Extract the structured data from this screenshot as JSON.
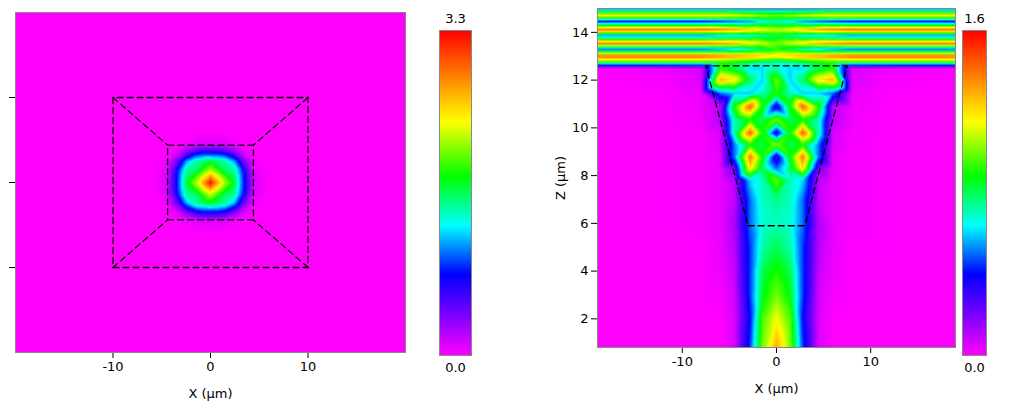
{
  "chart_data": [
    {
      "type": "heatmap",
      "xlabel": "X (µm)",
      "xlim": [
        -20,
        20
      ],
      "ylim": [
        -20,
        20
      ],
      "xticks": [
        -10,
        0,
        10
      ],
      "yticks": [
        -10,
        0,
        10
      ],
      "tick_labels": "x",
      "zlim": [
        0,
        3.3
      ],
      "zticks": [
        {
          "value": 0,
          "label": "0.0"
        },
        3.3
      ],
      "x": [
        -20,
        -6,
        -4.5,
        -3.5,
        -2.5,
        -1.5,
        -0.75,
        0,
        0.75,
        1.5,
        2.5,
        3.5,
        4.5,
        6,
        20
      ],
      "y": [
        -20,
        -6,
        -4.5,
        -3.5,
        -2.5,
        -1.5,
        -0.75,
        0,
        0.75,
        1.5,
        2.5,
        3.5,
        4.5,
        6,
        20
      ],
      "values": [
        [
          0,
          0,
          0,
          0,
          0,
          0,
          0,
          0,
          0,
          0,
          0,
          0,
          0,
          0,
          0
        ],
        [
          0,
          0,
          0,
          0,
          0,
          0,
          0,
          0,
          0,
          0,
          0,
          0,
          0,
          0,
          0
        ],
        [
          0,
          0,
          0,
          0,
          0.03,
          0.08,
          0.1,
          0.1,
          0.1,
          0.08,
          0.03,
          0,
          0,
          0,
          0
        ],
        [
          0,
          0,
          0,
          0.1,
          0.4,
          0.7,
          0.8,
          0.8,
          0.8,
          0.7,
          0.4,
          0.1,
          0,
          0,
          0
        ],
        [
          0,
          0,
          0.03,
          0.4,
          1.1,
          1.5,
          1.6,
          1.7,
          1.6,
          1.5,
          1.1,
          0.4,
          0.03,
          0,
          0
        ],
        [
          0,
          0,
          0.08,
          0.7,
          1.5,
          1.6,
          1.9,
          2.2,
          1.9,
          1.6,
          1.5,
          0.7,
          0.08,
          0,
          0
        ],
        [
          0,
          0,
          0.1,
          0.8,
          1.6,
          1.9,
          2.3,
          2.7,
          2.3,
          1.9,
          1.6,
          0.8,
          0.1,
          0,
          0
        ],
        [
          0,
          0,
          0.1,
          0.8,
          1.7,
          2.2,
          2.7,
          3.3,
          2.7,
          2.2,
          1.7,
          0.8,
          0.1,
          0,
          0
        ],
        [
          0,
          0,
          0.1,
          0.8,
          1.6,
          1.9,
          2.3,
          2.7,
          2.3,
          1.9,
          1.6,
          0.8,
          0.1,
          0,
          0
        ],
        [
          0,
          0,
          0.08,
          0.7,
          1.5,
          1.6,
          1.9,
          2.2,
          1.9,
          1.6,
          1.5,
          0.7,
          0.08,
          0,
          0
        ],
        [
          0,
          0,
          0.03,
          0.4,
          1.1,
          1.5,
          1.6,
          1.7,
          1.6,
          1.5,
          1.1,
          0.4,
          0.03,
          0,
          0
        ],
        [
          0,
          0,
          0,
          0.1,
          0.4,
          0.7,
          0.8,
          0.8,
          0.8,
          0.7,
          0.4,
          0.1,
          0,
          0,
          0
        ],
        [
          0,
          0,
          0,
          0,
          0.03,
          0.08,
          0.1,
          0.1,
          0.1,
          0.08,
          0.03,
          0,
          0,
          0,
          0
        ],
        [
          0,
          0,
          0,
          0,
          0,
          0,
          0,
          0,
          0,
          0,
          0,
          0,
          0,
          0,
          0
        ],
        [
          0,
          0,
          0,
          0,
          0,
          0,
          0,
          0,
          0,
          0,
          0,
          0,
          0,
          0,
          0
        ]
      ],
      "outline": [
        [
          [
            -10,
            -10
          ],
          [
            10,
            -10
          ],
          [
            10,
            10
          ],
          [
            -10,
            10
          ],
          [
            -10,
            -10
          ]
        ],
        [
          [
            -4.4,
            -4.4
          ],
          [
            4.4,
            -4.4
          ],
          [
            4.4,
            4.4
          ],
          [
            -4.4,
            4.4
          ],
          [
            -4.4,
            -4.4
          ]
        ],
        [
          [
            -10,
            -10
          ],
          [
            -4.4,
            -4.4
          ]
        ],
        [
          [
            10,
            -10
          ],
          [
            4.4,
            -4.4
          ]
        ],
        [
          [
            10,
            10
          ],
          [
            4.4,
            4.4
          ]
        ],
        [
          [
            -10,
            10
          ],
          [
            -4.4,
            4.4
          ]
        ]
      ]
    },
    {
      "type": "heatmap",
      "xlabel": "X (µm)",
      "ylabel": "Z (µm)",
      "xlim": [
        -19,
        19
      ],
      "ylim": [
        0.8,
        15
      ],
      "xticks": [
        -10,
        0,
        10
      ],
      "yticks": [
        2,
        4,
        6,
        8,
        10,
        12,
        14
      ],
      "tick_labels": true,
      "zlim": [
        0,
        1.6
      ],
      "zticks": [
        {
          "value": 0,
          "label": "0.0"
        },
        1.6
      ],
      "x": [
        -19,
        -12,
        -8,
        -6,
        -4.5,
        -2.8,
        -1.5,
        0,
        1.5,
        2.8,
        4.5,
        6,
        8,
        12,
        19
      ],
      "y": [
        0.8,
        2,
        3,
        4,
        5,
        6,
        7,
        7.8,
        8.3,
        8.8,
        9.3,
        9.8,
        10.35,
        10.9,
        11.45,
        12.0,
        12.5,
        12.75,
        13.0,
        13.3,
        13.55,
        13.85,
        14.1,
        14.45,
        14.7,
        15.0
      ],
      "values": [
        [
          0,
          0,
          0,
          0,
          0.05,
          0.45,
          1.0,
          1.3,
          1.0,
          0.45,
          0.05,
          0,
          0,
          0,
          0
        ],
        [
          0,
          0,
          0,
          0,
          0.05,
          0.4,
          0.95,
          1.15,
          0.95,
          0.4,
          0.05,
          0,
          0,
          0,
          0
        ],
        [
          0,
          0,
          0,
          0.01,
          0.06,
          0.45,
          0.85,
          1.0,
          0.85,
          0.45,
          0.06,
          0.01,
          0,
          0,
          0
        ],
        [
          0,
          0,
          0,
          0.02,
          0.08,
          0.45,
          0.8,
          0.9,
          0.8,
          0.45,
          0.08,
          0.02,
          0,
          0,
          0
        ],
        [
          0,
          0,
          0,
          0.03,
          0.1,
          0.45,
          0.72,
          0.8,
          0.72,
          0.45,
          0.1,
          0.03,
          0,
          0,
          0
        ],
        [
          0,
          0,
          0.01,
          0.03,
          0.12,
          0.5,
          0.68,
          0.7,
          0.68,
          0.5,
          0.12,
          0.03,
          0.01,
          0,
          0
        ],
        [
          0,
          0,
          0.01,
          0.03,
          0.08,
          0.5,
          0.7,
          0.75,
          0.7,
          0.5,
          0.08,
          0.03,
          0.01,
          0,
          0
        ],
        [
          0,
          0,
          0.01,
          0.03,
          0.1,
          0.6,
          0.7,
          1.0,
          0.7,
          0.6,
          0.1,
          0.03,
          0.01,
          0,
          0
        ],
        [
          0,
          0,
          0.01,
          0.03,
          0.2,
          1.2,
          0.8,
          0.5,
          0.8,
          1.2,
          0.2,
          0.03,
          0.01,
          0,
          0
        ],
        [
          0,
          0,
          0.01,
          0.03,
          0.5,
          1.4,
          0.9,
          0.3,
          0.9,
          1.4,
          0.5,
          0.03,
          0.01,
          0,
          0
        ],
        [
          0,
          0,
          0.01,
          0.05,
          0.5,
          0.9,
          0.8,
          1.0,
          0.8,
          0.9,
          0.5,
          0.05,
          0.01,
          0,
          0
        ],
        [
          0,
          0,
          0.01,
          0.05,
          0.7,
          1.45,
          0.9,
          0.3,
          0.9,
          1.45,
          0.7,
          0.05,
          0.01,
          0,
          0
        ],
        [
          0,
          0,
          0.02,
          0.1,
          0.7,
          0.9,
          0.8,
          1.0,
          0.8,
          0.9,
          0.7,
          0.1,
          0.02,
          0,
          0
        ],
        [
          0,
          0,
          0.02,
          0.1,
          0.9,
          1.45,
          0.9,
          0.3,
          0.9,
          1.45,
          0.9,
          0.1,
          0.02,
          0,
          0
        ],
        [
          0,
          0,
          0.03,
          0.5,
          0.6,
          0.6,
          0.7,
          0.9,
          0.7,
          0.6,
          0.6,
          0.5,
          0.03,
          0,
          0
        ],
        [
          0,
          0.01,
          0.05,
          1.3,
          1.2,
          0.8,
          0.6,
          1.0,
          0.6,
          0.8,
          1.2,
          1.3,
          0.05,
          0.01,
          0
        ],
        [
          0,
          0.02,
          0.05,
          0.9,
          0.8,
          0.6,
          0.6,
          0.7,
          0.6,
          0.6,
          0.8,
          0.9,
          0.05,
          0.02,
          0
        ],
        [
          0.9,
          0.9,
          0.9,
          0.9,
          0.85,
          0.8,
          0.75,
          0.7,
          0.75,
          0.8,
          0.85,
          0.9,
          0.9,
          0.9,
          0.9
        ],
        [
          1.45,
          1.45,
          1.45,
          1.4,
          1.35,
          1.3,
          1.25,
          1.2,
          1.25,
          1.3,
          1.35,
          1.4,
          1.45,
          1.45,
          1.45
        ],
        [
          0.5,
          0.5,
          0.5,
          0.55,
          0.6,
          0.7,
          0.8,
          0.9,
          0.8,
          0.7,
          0.6,
          0.55,
          0.5,
          0.5,
          0.5
        ],
        [
          1.4,
          1.4,
          1.4,
          1.35,
          1.3,
          1.2,
          1.1,
          1.0,
          1.1,
          1.2,
          1.3,
          1.35,
          1.4,
          1.4,
          1.4
        ],
        [
          0.5,
          0.5,
          0.5,
          0.55,
          0.6,
          0.65,
          0.75,
          0.8,
          0.75,
          0.65,
          0.6,
          0.55,
          0.5,
          0.5,
          0.5
        ],
        [
          1.45,
          1.45,
          1.45,
          1.4,
          1.35,
          1.25,
          1.15,
          1.1,
          1.15,
          1.25,
          1.35,
          1.4,
          1.45,
          1.45,
          1.45
        ],
        [
          0.4,
          0.4,
          0.4,
          0.45,
          0.5,
          0.55,
          0.65,
          0.7,
          0.65,
          0.55,
          0.5,
          0.45,
          0.4,
          0.4,
          0.4
        ],
        [
          1.2,
          1.2,
          1.2,
          1.2,
          1.15,
          1.1,
          1.05,
          1.0,
          1.05,
          1.1,
          1.15,
          1.2,
          1.2,
          1.2,
          1.2
        ],
        [
          0.5,
          0.5,
          0.5,
          0.5,
          0.5,
          0.5,
          0.5,
          0.5,
          0.5,
          0.5,
          0.5,
          0.5,
          0.5,
          0.5,
          0.5
        ]
      ],
      "outline": [
        [
          [
            -3,
            5.9
          ],
          [
            3,
            5.9
          ],
          [
            7.5,
            12.6
          ],
          [
            -7.5,
            12.6
          ],
          [
            -3,
            5.9
          ]
        ]
      ]
    }
  ]
}
